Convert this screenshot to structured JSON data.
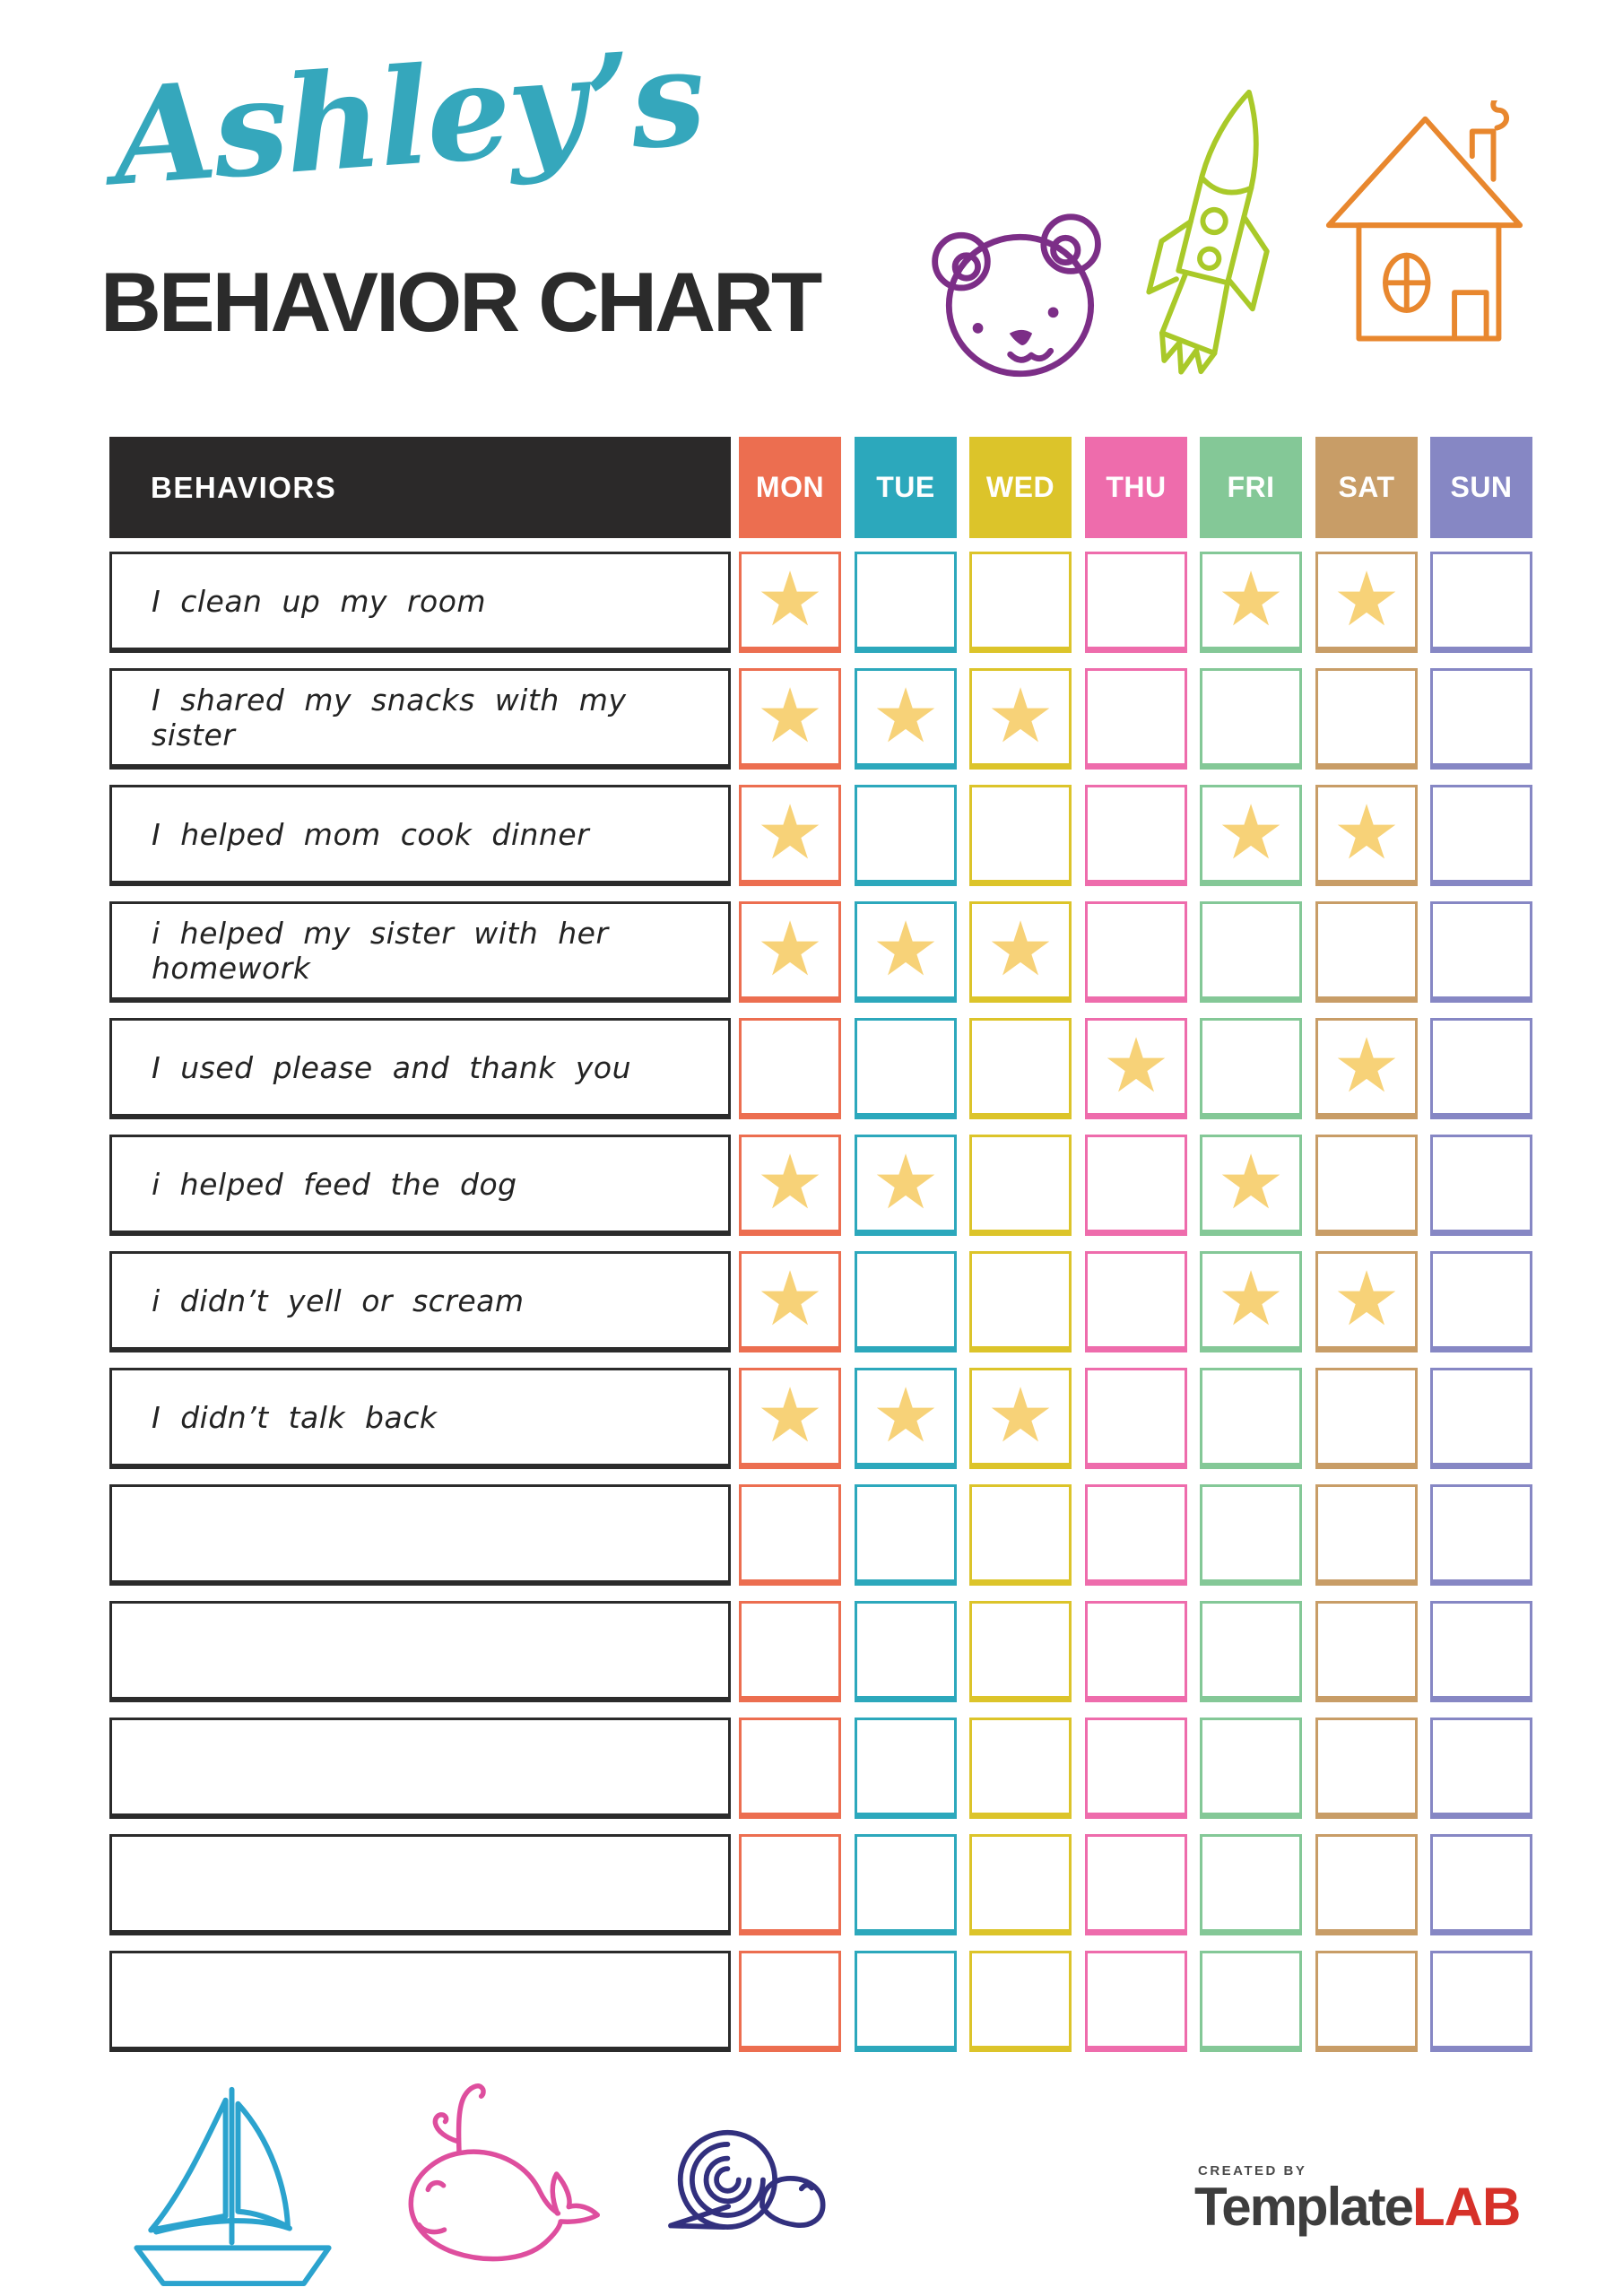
{
  "title": {
    "name": "Ashley’s",
    "subtitle": "BEHAVIOR CHART"
  },
  "colors": {
    "title_script": "#35A7BC",
    "subtitle_text": "#2B2B2B",
    "header_bg": "#2B2929",
    "row_border": "#2B2B2B",
    "star": "#F7D278",
    "bear": "#7C2E87",
    "rocket": "#A9C929",
    "house": "#E8872E",
    "sailboat": "#2BA3CE",
    "whale": "#DE4E9E",
    "snail": "#32307E",
    "logo_template": "#3D3D3D",
    "logo_lab": "#D63129",
    "logo_created_by": "#4A4A4A"
  },
  "table": {
    "behaviors_label": "BEHAVIORS",
    "days": [
      {
        "label": "MON",
        "color": "#EC6E50"
      },
      {
        "label": "TUE",
        "color": "#2CA8BC"
      },
      {
        "label": "WED",
        "color": "#DCC42A"
      },
      {
        "label": "THU",
        "color": "#EE6CAC"
      },
      {
        "label": "FRI",
        "color": "#84C897"
      },
      {
        "label": "SAT",
        "color": "#C89D67"
      },
      {
        "label": "SUN",
        "color": "#8687C4"
      }
    ],
    "rows": [
      {
        "label": "I clean up my room",
        "stars": [
          "MON",
          "FRI",
          "SAT"
        ]
      },
      {
        "label": "I shared my snacks with my sister",
        "stars": [
          "MON",
          "TUE",
          "WED"
        ]
      },
      {
        "label": "I helped mom cook dinner",
        "stars": [
          "MON",
          "FRI",
          "SAT"
        ]
      },
      {
        "label": "i helped my sister with her homework",
        "stars": [
          "MON",
          "TUE",
          "WED"
        ]
      },
      {
        "label": "I used please and thank you",
        "stars": [
          "THU",
          "SAT"
        ]
      },
      {
        "label": "i helped feed the dog",
        "stars": [
          "MON",
          "TUE",
          "FRI"
        ]
      },
      {
        "label": "i didn’t yell or scream",
        "stars": [
          "MON",
          "FRI",
          "SAT"
        ]
      },
      {
        "label": "I didn’t talk back",
        "stars": [
          "MON",
          "TUE",
          "WED"
        ]
      },
      {
        "label": "",
        "stars": []
      },
      {
        "label": "",
        "stars": []
      },
      {
        "label": "",
        "stars": []
      },
      {
        "label": "",
        "stars": []
      },
      {
        "label": "",
        "stars": []
      }
    ]
  },
  "footer": {
    "created_by": "CREATED BY",
    "logo_template": "Template",
    "logo_lab": "LAB"
  }
}
